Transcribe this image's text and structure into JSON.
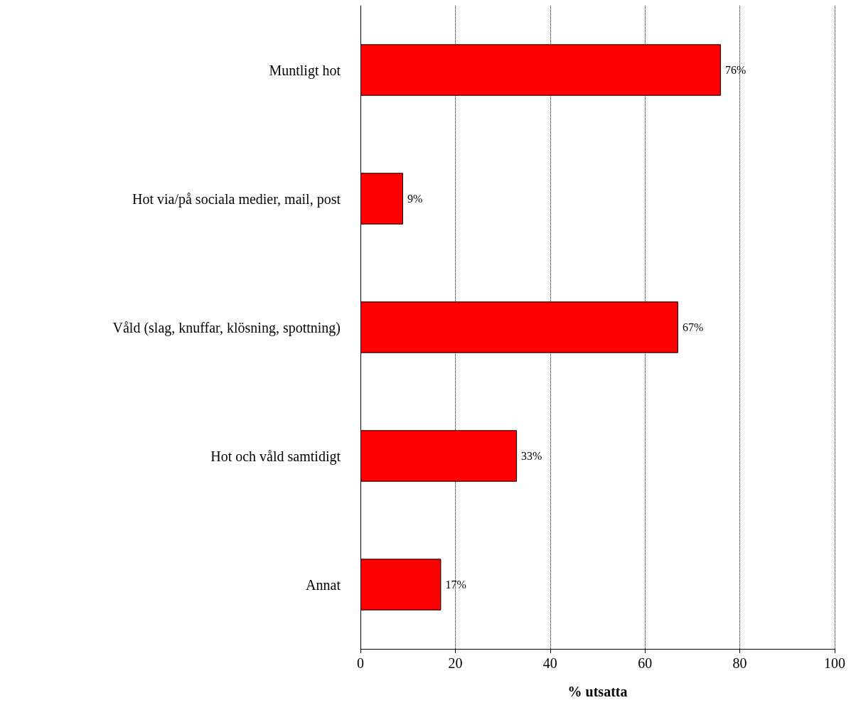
{
  "chart_data": {
    "type": "bar",
    "orientation": "horizontal",
    "xlabel": "% utsatta",
    "categories": [
      "Muntligt hot",
      "Hot via/på sociala medier, mail, post",
      "Våld (slag, knuffar, klösning, spottning)",
      "Hot och våld samtidigt",
      "Annat"
    ],
    "values": [
      76,
      9,
      67,
      33,
      17
    ],
    "value_labels": [
      "76%",
      "9%",
      "67%",
      "33%",
      "17%"
    ],
    "color": "#ff0000",
    "xlim": [
      0,
      100
    ],
    "xticks": [
      0,
      20,
      40,
      60,
      80,
      100
    ],
    "grid": "x"
  }
}
